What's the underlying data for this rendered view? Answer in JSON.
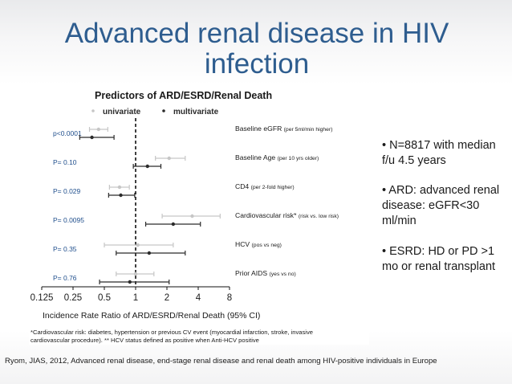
{
  "slide": {
    "title_line1": "Advanced renal disease in HIV",
    "title_line2": "infection",
    "bullets": [
      "• N=8817 with median f/u 4.5 years",
      "• ARD: advanced renal disease: eGFR<30 ml/min",
      "• ESRD: HD or PD >1 mo or renal transplant"
    ],
    "citation": "Ryom, JIAS, 2012, Advanced renal disease, end-stage renal disease and renal death among HIV-positive individuals in Europe",
    "colors": {
      "title": "#2e5d8f",
      "univariate": "#c6c6c6",
      "multivariate": "#2b2b2b",
      "pvalue": "#1f4e8c"
    }
  },
  "chart_data": {
    "type": "scatter",
    "title": "Predictors of ARD/ESRD/Renal Death",
    "legend": [
      {
        "name": "univariate",
        "color": "#c6c6c6"
      },
      {
        "name": "multivariate",
        "color": "#2b2b2b"
      }
    ],
    "xlabel": "Incidence Rate Ratio of ARD/ESRD/Renal Death (95% CI)",
    "x_scale": "log2",
    "xlim": [
      0.125,
      8
    ],
    "x_ticks": [
      "0.125",
      "0.25",
      "0.5",
      "1",
      "2",
      "4",
      "8"
    ],
    "reference_line": 1,
    "rows": [
      {
        "label": "Baseline eGFR",
        "detail": "(per 5ml/min higher)",
        "p": "p<0.0001",
        "univariate": {
          "est": 0.44,
          "lo": 0.36,
          "hi": 0.54
        },
        "multivariate": {
          "est": 0.38,
          "lo": 0.29,
          "hi": 0.62
        }
      },
      {
        "label": "Baseline Age",
        "detail": "(per 10 yrs older)",
        "p": "P= 0.10",
        "univariate": {
          "est": 2.1,
          "lo": 1.55,
          "hi": 3.0
        },
        "multivariate": {
          "est": 1.3,
          "lo": 0.95,
          "hi": 1.75
        }
      },
      {
        "label": "CD4",
        "detail": "(per 2-fold higher)",
        "p": "P= 0.029",
        "univariate": {
          "est": 0.7,
          "lo": 0.56,
          "hi": 0.87
        },
        "multivariate": {
          "est": 0.72,
          "lo": 0.55,
          "hi": 0.98
        }
      },
      {
        "label": "Cardiovascular risk*",
        "detail": "(risk vs. low risk)",
        "p": "P= 0.0095",
        "univariate": {
          "est": 3.5,
          "lo": 1.8,
          "hi": 6.5
        },
        "multivariate": {
          "est": 2.3,
          "lo": 1.25,
          "hi": 4.2
        }
      },
      {
        "label": "HCV",
        "detail": "(pos vs neg)",
        "p": "P= 0.35",
        "univariate": {
          "est": 1.05,
          "lo": 0.5,
          "hi": 2.3
        },
        "multivariate": {
          "est": 1.35,
          "lo": 0.65,
          "hi": 3.0
        }
      },
      {
        "label": "Prior AIDS",
        "detail": "(yes vs no)",
        "p": "P= 0.76",
        "univariate": {
          "est": 1.0,
          "lo": 0.65,
          "hi": 1.5
        },
        "multivariate": {
          "est": 0.88,
          "lo": 0.45,
          "hi": 2.1
        }
      }
    ],
    "footnote_line1": "*Cardiovascular risk: diabetes, hypertension or previous CV event (myocardial infarction, stroke, invasive",
    "footnote_line2": "cardiovascular procedure).   ** HCV status defined as positive when Anti-HCV positive"
  }
}
